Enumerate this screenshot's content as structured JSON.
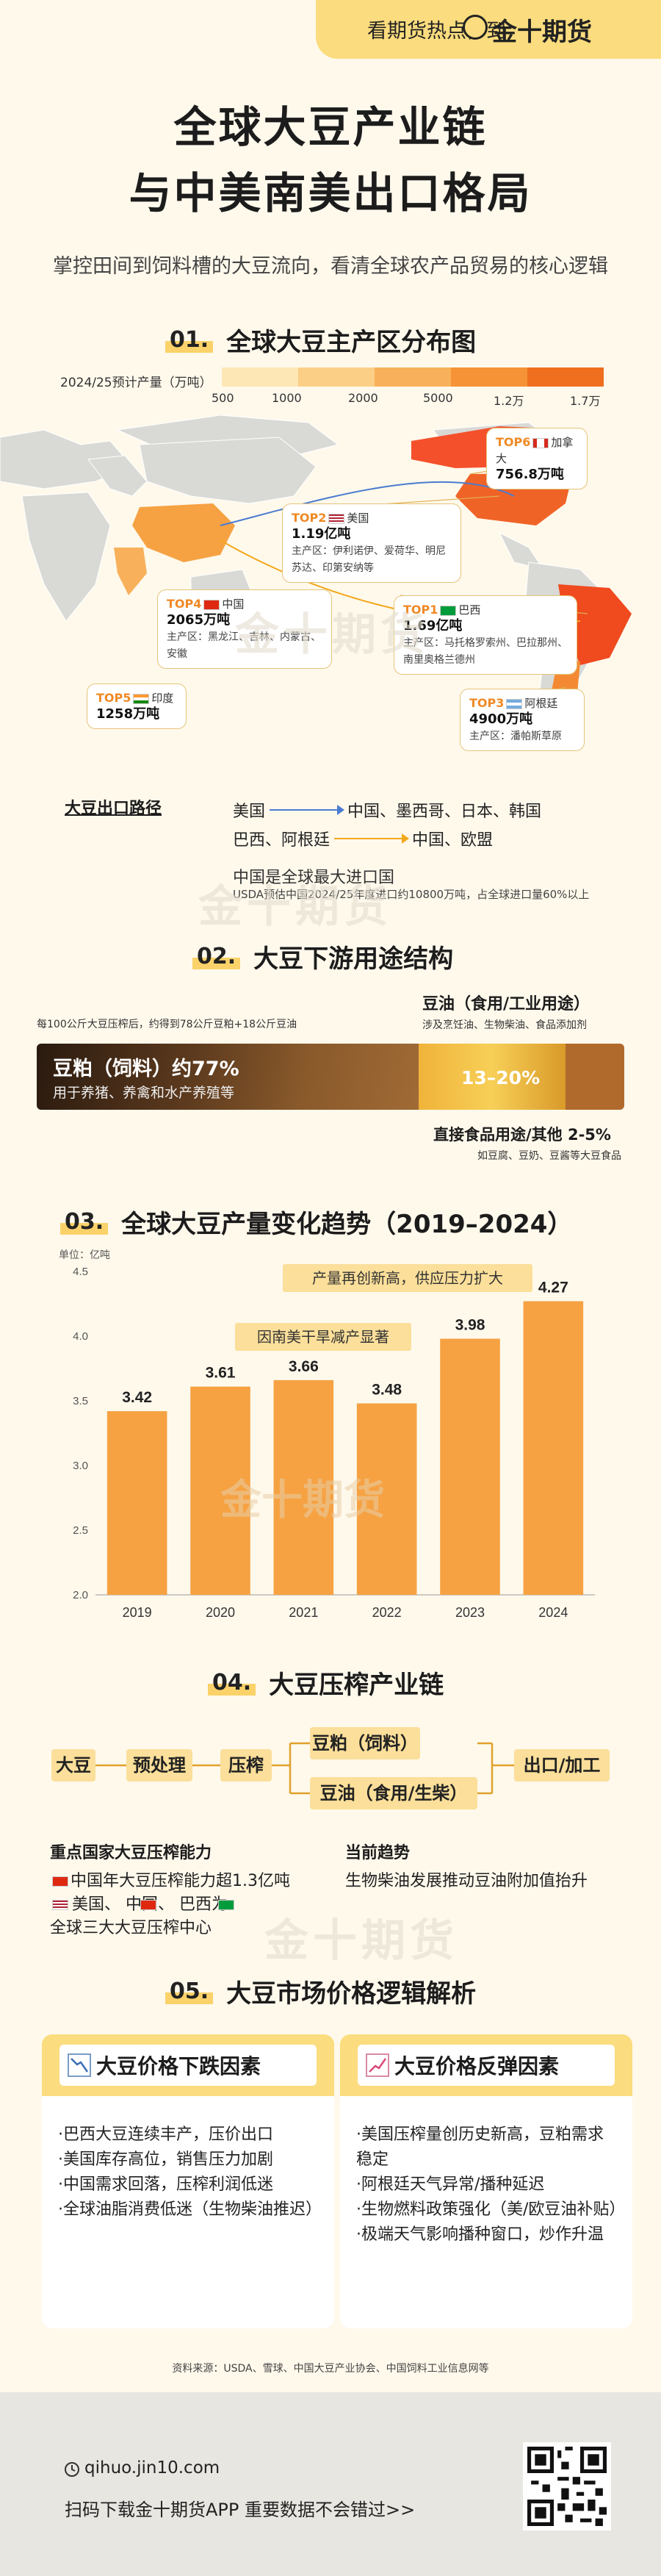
{
  "banner": {
    "text": "看期货热点，到",
    "brand": "金十期货"
  },
  "title_line1": "全球大豆产业链",
  "title_line2": "与中美南美出口格局",
  "subtitle": "掌控田间到饲料槽的大豆流向，看清全球农产品贸易的核心逻辑",
  "watermark": "金十期货",
  "section1": {
    "num": "01.",
    "title": "全球大豆主产区分布图",
    "scale_label": "2024/25预计产量（万吨）",
    "scale_ticks": [
      "500",
      "1000",
      "2000",
      "5000",
      "1.2万",
      "1.7万"
    ],
    "scale_colors": [
      "#fde7b5",
      "#fbcf86",
      "#f8b15a",
      "#f59336",
      "#ef6f1f"
    ],
    "callouts": {
      "canada": {
        "rank": "TOP6",
        "country": "加拿大",
        "value": "756.8万吨"
      },
      "usa": {
        "rank": "TOP2",
        "country": "美国",
        "value": "1.19亿吨",
        "prov": "主产区：伊利诺伊、爱荷华、明尼苏达、印第安纳等"
      },
      "china": {
        "rank": "TOP4",
        "country": "中国",
        "value": "2065万吨",
        "prov": "主产区：黑龙江、吉林、内蒙古、安徽"
      },
      "brazil": {
        "rank": "TOP1",
        "country": "巴西",
        "value": "1.69亿吨",
        "prov": "主产区：马托格罗索州、巴拉那州、南里奥格兰德州"
      },
      "india": {
        "rank": "TOP5",
        "country": "印度",
        "value": "1258万吨"
      },
      "argentina": {
        "rank": "TOP3",
        "country": "阿根廷",
        "value": "4900万吨",
        "prov": "主产区：潘帕斯草原"
      }
    },
    "routes_title": "大豆出口路径",
    "routes": [
      {
        "from": "美国",
        "to": "中国、墨西哥、日本、韩国",
        "color": "#4a7bd0"
      },
      {
        "from": "巴西、阿根廷",
        "to": "中国、欧盟",
        "color": "#f2a81d"
      }
    ],
    "import_main": "中国是全球最大进口国",
    "import_sub": "USDA预估中国2024/25年度进口约10800万吨，占全球进口量60%以上"
  },
  "section2": {
    "num": "02.",
    "title": "大豆下游用途结构",
    "note": "每100公斤大豆压榨后，约得到78公斤豆粕+18公斤豆油",
    "oil_title": "豆油（食用/工业用途）",
    "oil_uses": "涉及烹饪油、生物柴油、食品添加剂",
    "meal_label": "豆粕（饲料）约77%",
    "meal_sub": "用于养猪、养禽和水产养殖等",
    "oil_pct": "13–20%",
    "food_title": "直接食品用途/其他 2-5%",
    "food_uses": "如豆腐、豆奶、豆酱等大豆食品",
    "share_meal": 0.77,
    "share_oil": 0.18
  },
  "section3": {
    "num": "03.",
    "title": "全球大豆产量变化趋势（2019–2024）",
    "unit": "单位：亿吨",
    "annotations": {
      "y2024": "产量再创新高，供应压力扩大",
      "y2022": "因南美干旱减产显著"
    }
  },
  "chart_data": {
    "type": "bar",
    "categories": [
      "2019",
      "2020",
      "2021",
      "2022",
      "2023",
      "2024"
    ],
    "values": [
      3.42,
      3.61,
      3.66,
      3.48,
      3.98,
      4.27
    ],
    "title": "全球大豆产量变化趋势（2019–2024）",
    "xlabel": "",
    "ylabel": "单位：亿吨",
    "ylim": [
      2.0,
      4.5
    ],
    "yticks": [
      "2.0",
      "2.5",
      "3.0",
      "3.5",
      "4.0",
      "4.5"
    ],
    "grid": false,
    "bar_color": "#f6a243"
  },
  "section4": {
    "num": "04.",
    "title": "大豆压榨产业链",
    "chain": {
      "start": "大豆",
      "pre": "预处理",
      "press": "压榨",
      "meal": "豆粕（饲料）",
      "oil": "豆油（食用/生柴）",
      "end": "出口/加工"
    },
    "cap_title": "重点国家大豆压榨能力",
    "cap_line1": "中国年大豆压榨能力超1.3亿吨",
    "cap_line2": "美国、   中国、   巴西为",
    "cap_line3": "全球三大大豆压榨中心",
    "trend_title": "当前趋势",
    "trend_text": "生物柴油发展推动豆油附加值抬升"
  },
  "section5": {
    "num": "05.",
    "title": "大豆市场价格逻辑解析",
    "down_title": "大豆价格下跌因素",
    "down_items": [
      "·巴西大豆连续丰产，压价出口",
      "·美国库存高位，销售压力加剧",
      "·中国需求回落，压榨利润低迷",
      "·全球油脂消费低迷（生物柴油推迟）"
    ],
    "up_title": "大豆价格反弹因素",
    "up_items": [
      "·美国压榨量创历史新高，豆粕需求稳定",
      "·阿根廷天气异常/播种延迟",
      "·生物燃料政策强化（美/欧豆油补贴）",
      "·极端天气影响播种窗口，炒作升温"
    ]
  },
  "source": "资料来源：USDA、雪球、中国大豆产业协会、中国饲料工业信息网等",
  "footer": {
    "url": "qihuo.jin10.com",
    "download": "扫码下载金十期货APP 重要数据不会错过>>"
  }
}
